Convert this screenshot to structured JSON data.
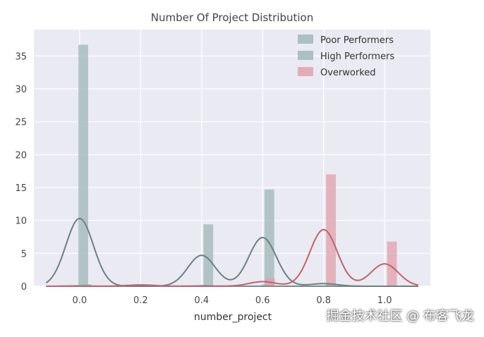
{
  "chart_data": {
    "type": "bar",
    "title": "Number Of Project Distribution",
    "xlabel": "number_project",
    "ylabel": "",
    "xlim": [
      -0.15,
      1.15
    ],
    "ylim": [
      0,
      39
    ],
    "x_ticks": [
      "0.0",
      "0.2",
      "0.4",
      "0.6",
      "0.8",
      "1.0"
    ],
    "y_ticks": [
      "0",
      "5",
      "10",
      "15",
      "20",
      "25",
      "30",
      "35"
    ],
    "grid": true,
    "legend_position": "top-right",
    "series": [
      {
        "name": "Poor Performers",
        "color": "#9fb8b8",
        "bars": [
          {
            "x": 0.0,
            "value": 36.7
          },
          {
            "x": 0.4,
            "value": 0.2
          },
          {
            "x": 0.6,
            "value": 0.3
          }
        ],
        "kde": [
          {
            "mean": 0.0,
            "sd": 0.045,
            "peak": 0.05
          },
          {
            "mean": 0.4,
            "sd": 0.045,
            "peak": 0.05
          }
        ]
      },
      {
        "name": "High Performers",
        "color": "#9fb8b8",
        "bars": [
          {
            "x": 0.0,
            "value": 0.3
          },
          {
            "x": 0.4,
            "value": 9.4
          },
          {
            "x": 0.6,
            "value": 14.7
          },
          {
            "x": 0.8,
            "value": 0.4
          }
        ],
        "kde": [
          {
            "mean": 0.0,
            "sd": 0.045,
            "peak": 10.3
          },
          {
            "mean": 0.4,
            "sd": 0.045,
            "peak": 4.7
          },
          {
            "mean": 0.6,
            "sd": 0.045,
            "peak": 7.4
          },
          {
            "mean": 0.8,
            "sd": 0.045,
            "peak": 0.4
          }
        ]
      },
      {
        "name": "Overworked",
        "color": "#e0a2ad",
        "bars": [
          {
            "x": 0.2,
            "value": 0.1
          },
          {
            "x": 0.6,
            "value": 1.2
          },
          {
            "x": 0.8,
            "value": 17.0
          },
          {
            "x": 1.0,
            "value": 6.8
          }
        ],
        "kde": [
          {
            "mean": 0.2,
            "sd": 0.045,
            "peak": 0.2
          },
          {
            "mean": 0.6,
            "sd": 0.045,
            "peak": 0.7
          },
          {
            "mean": 0.8,
            "sd": 0.045,
            "peak": 8.6
          },
          {
            "mean": 1.0,
            "sd": 0.045,
            "peak": 3.4
          }
        ]
      }
    ]
  },
  "watermark": "掘金技术社区 @ 布客飞龙",
  "colors": {
    "plot_background": "#eaeaf2",
    "grid": "#ffffff",
    "poor_line": "#7a8f8f",
    "high_line": "#6d8080",
    "over_line": "#c2616f"
  }
}
